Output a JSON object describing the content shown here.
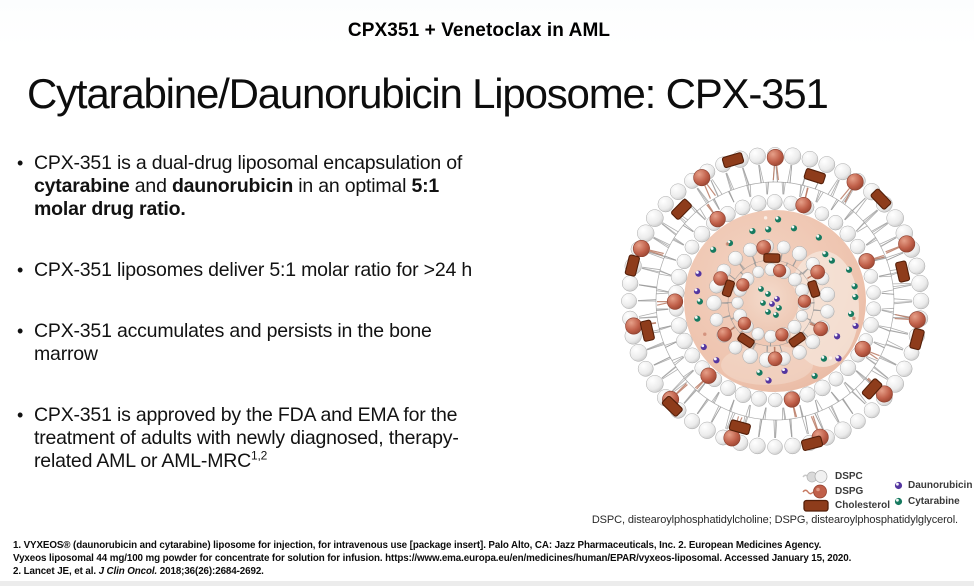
{
  "header": {
    "title": "CPX351 + Venetoclax in AML"
  },
  "slide": {
    "title": "Cytarabine/Daunorubicin Liposome: CPX-351",
    "bullets": [
      {
        "lines": [
          [
            {
              "t": "CPX-351 is a dual-drug liposomal encapsulation of"
            }
          ],
          [
            {
              "t": "cytarabine",
              "b": true
            },
            {
              "t": " and "
            },
            {
              "t": "daunorubicin",
              "b": true
            },
            {
              "t": " in an optimal "
            },
            {
              "t": "5:1",
              "b": true
            }
          ],
          [
            {
              "t": "molar drug ratio.",
              "b": true
            }
          ]
        ]
      },
      {
        "lines": [
          [
            {
              "t": "CPX-351 liposomes deliver 5:1 molar ratio for >24 h"
            }
          ]
        ]
      },
      {
        "lines": [
          [
            {
              "t": "CPX-351 accumulates and persists in the bone"
            }
          ],
          [
            {
              "t": "marrow"
            }
          ]
        ]
      },
      {
        "lines": [
          [
            {
              "t": "CPX-351 is approved by the FDA and EMA for the"
            }
          ],
          [
            {
              "t": "treatment of adults with newly diagnosed, therapy-"
            }
          ],
          [
            {
              "t": "related AML or AML-MRC"
            },
            {
              "t": "1,2",
              "sup": true
            }
          ]
        ]
      }
    ]
  },
  "figure": {
    "legend": [
      {
        "label": "DSPC"
      },
      {
        "label": "DSPG"
      },
      {
        "label": "Cholesterol"
      },
      {
        "label": "Daunorubicin"
      },
      {
        "label": "Cytarabine"
      }
    ],
    "abbreviations": "DSPC, distearoylphosphatidylcholine; DSPG, distearoylphosphatidylglycerol.",
    "palette": {
      "dspc_sphere": "#ebebeb",
      "dspg_sphere": "#c05f49",
      "cholesterol": "#8e3c1b",
      "cholesterol_border": "#541f09",
      "daunorubicin_dot": "#5436a0",
      "cytarabine_dot": "#177a60",
      "interior_pink": "#eec3ae",
      "tail_gray": "#9b9b9b"
    }
  },
  "references": {
    "line1": "1. VYXEOS® (daunorubicin and cytarabine) liposome for injection, for intravenous use [package insert]. Palo Alto, CA: Jazz Pharmaceuticals, Inc. 2. European Medicines Agency.",
    "line2": "Vyxeos liposomal 44 mg/100 mg powder for concentrate for solution for infusion. https://www.ema.europa.eu/en/medicines/human/EPAR/vyxeos-liposomal. Accessed January 15, 2020.",
    "line3_prefix": "2. Lancet JE, et al. ",
    "line3_italic": "J Clin Oncol.",
    "line3_suffix": " 2018;36(26):2684-2692."
  }
}
